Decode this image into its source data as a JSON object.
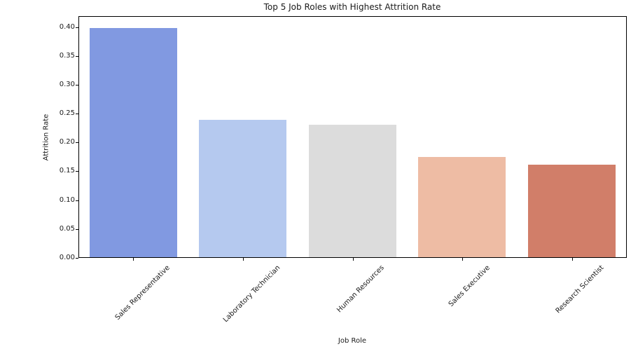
{
  "chart_data": {
    "type": "bar",
    "title": "Top 5 Job Roles with Highest Attrition Rate",
    "xlabel": "Job Role",
    "ylabel": "Attrition Rate",
    "categories": [
      "Sales Representative",
      "Laboratory Technician",
      "Human Resources",
      "Sales Executive",
      "Research Scientist"
    ],
    "values": [
      0.398,
      0.239,
      0.231,
      0.175,
      0.161
    ],
    "bar_colors": [
      "#8199e1",
      "#b5c9ef",
      "#dcdcdc",
      "#eebca4",
      "#d17e69"
    ],
    "ylim": [
      0,
      0.419
    ],
    "yticks": [
      0.0,
      0.05,
      0.1,
      0.15,
      0.2,
      0.25,
      0.3,
      0.35,
      0.4
    ],
    "ytick_labels": [
      "0.00",
      "0.05",
      "0.10",
      "0.15",
      "0.20",
      "0.25",
      "0.30",
      "0.35",
      "0.40"
    ],
    "x_tick_rotation_deg": 45,
    "bar_width_fraction": 0.8,
    "grid": false,
    "legend": "none",
    "plot_background": "#ffffff",
    "spine_color": "#000000"
  }
}
